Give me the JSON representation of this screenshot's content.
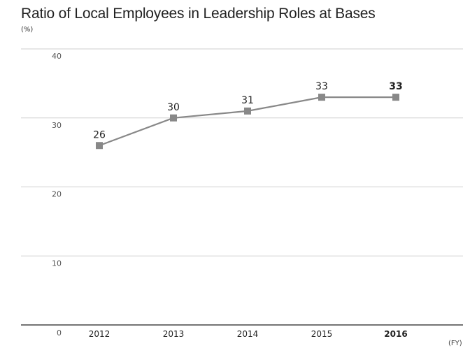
{
  "chart_data": {
    "type": "line",
    "title": "Ratio of Local Employees in Leadership Roles at Bases",
    "ylabel": "(%)",
    "xlabel": "(FY)",
    "ylim": [
      0,
      40
    ],
    "yticks": [
      0,
      10,
      20,
      30,
      40
    ],
    "categories": [
      "2012",
      "2013",
      "2014",
      "2015",
      "2016"
    ],
    "values": [
      26,
      30,
      31,
      33,
      33
    ],
    "highlight_last": true,
    "grid": true,
    "line_color": "#888888",
    "marker": "square"
  }
}
